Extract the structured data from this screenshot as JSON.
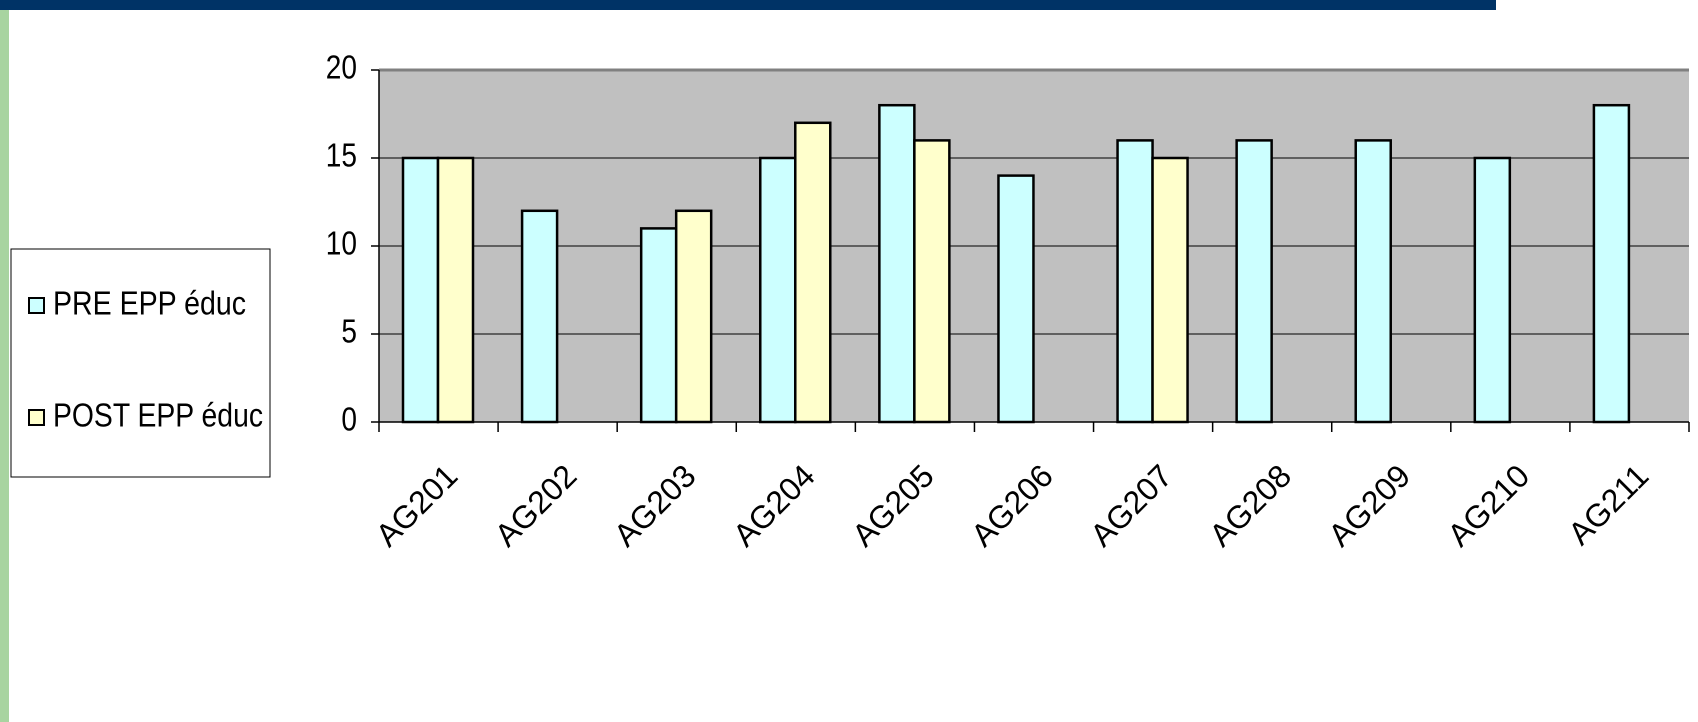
{
  "chart_data": {
    "type": "bar",
    "categories": [
      "AG201",
      "AG202",
      "AG203",
      "AG204",
      "AG205",
      "AG206",
      "AG207",
      "AG208",
      "AG209",
      "AG210",
      "AG211"
    ],
    "series": [
      {
        "name": "PRE EPP éduc",
        "color": "#ccffff",
        "values": [
          15,
          12,
          11,
          15,
          18,
          14,
          16,
          16,
          16,
          15,
          18
        ]
      },
      {
        "name": "POST EPP éduc",
        "color": "#ffffcc",
        "values": [
          15,
          null,
          12,
          17,
          16,
          null,
          15,
          null,
          null,
          null,
          null
        ]
      }
    ],
    "ylim": [
      0,
      20
    ],
    "yticks": [
      0,
      5,
      10,
      15,
      20
    ],
    "grid": true,
    "legend": "left"
  }
}
